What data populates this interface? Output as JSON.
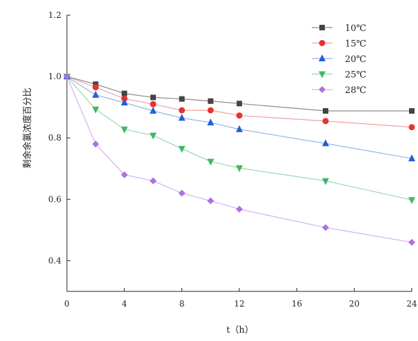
{
  "chart_data": {
    "type": "line",
    "title": "",
    "xlabel": "t（h）",
    "ylabel": "剩余余氯浓度百分比",
    "xlim": [
      0,
      24
    ],
    "ylim": [
      0.3,
      1.2
    ],
    "xticks": [
      0,
      4,
      8,
      12,
      16,
      20,
      24
    ],
    "yticks": [
      0.4,
      0.6,
      0.8,
      1.0,
      1.2
    ],
    "ytick_labels": [
      "0.4",
      "0.6",
      "0.8",
      "1.0",
      "1.2"
    ],
    "grid": false,
    "legend_position": "top-right",
    "series": [
      {
        "name": "10℃",
        "marker": "square",
        "color": "#444444",
        "line_color": "#8c8c8c",
        "x": [
          0,
          2,
          4,
          6,
          8,
          10,
          12,
          18,
          24
        ],
        "y": [
          1.0,
          0.975,
          0.945,
          0.932,
          0.927,
          0.92,
          0.912,
          0.888,
          0.888
        ]
      },
      {
        "name": "15℃",
        "marker": "circle",
        "color": "#e8322f",
        "line_color": "#f0a0a0",
        "x": [
          0,
          2,
          4,
          6,
          8,
          10,
          12,
          18,
          24
        ],
        "y": [
          1.0,
          0.965,
          0.928,
          0.91,
          0.89,
          0.89,
          0.873,
          0.855,
          0.835
        ]
      },
      {
        "name": "20℃",
        "marker": "triangle-up",
        "color": "#2060d8",
        "line_color": "#94b4e8",
        "x": [
          0,
          2,
          4,
          6,
          8,
          10,
          12,
          18,
          24
        ],
        "y": [
          1.0,
          0.94,
          0.915,
          0.888,
          0.865,
          0.85,
          0.828,
          0.782,
          0.733
        ]
      },
      {
        "name": "25℃",
        "marker": "triangle-down",
        "color": "#3fb868",
        "line_color": "#98d8aa",
        "x": [
          0,
          2,
          4,
          6,
          8,
          10,
          12,
          18,
          24
        ],
        "y": [
          1.0,
          0.893,
          0.828,
          0.808,
          0.765,
          0.723,
          0.702,
          0.66,
          0.598
        ]
      },
      {
        "name": "28℃",
        "marker": "diamond",
        "color": "#b070e0",
        "line_color": "#d4b0f0",
        "x": [
          0,
          2,
          4,
          6,
          8,
          10,
          12,
          18,
          24
        ],
        "y": [
          1.0,
          0.78,
          0.68,
          0.66,
          0.62,
          0.595,
          0.568,
          0.508,
          0.46
        ]
      }
    ]
  }
}
